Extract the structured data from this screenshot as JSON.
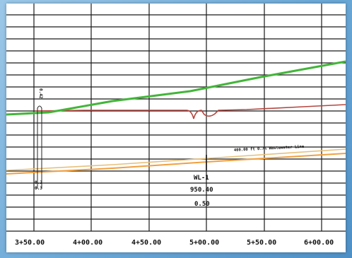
{
  "profile": {
    "stations": [
      "3+50.00",
      "4+00.00",
      "4+50.00",
      "5+00.00",
      "5+50.00",
      "6+00.00"
    ],
    "pipe_note": "400.00 ft 0.7% Wastewater Line",
    "structure": {
      "id": "WL-1",
      "elevation": "950.40",
      "depth": "0.50"
    },
    "left_marker": {
      "top_text": "0.42",
      "bottom_text_a": "0.2",
      "bottom_text_b": "0.3"
    },
    "colors": {
      "ground": "#43b53a",
      "existing": "#b4463f",
      "pipe_orange": "#f0a040",
      "pipe_tan": "#e6c07a",
      "grid": "#1a1a1a",
      "border": "#4e90c6"
    }
  }
}
